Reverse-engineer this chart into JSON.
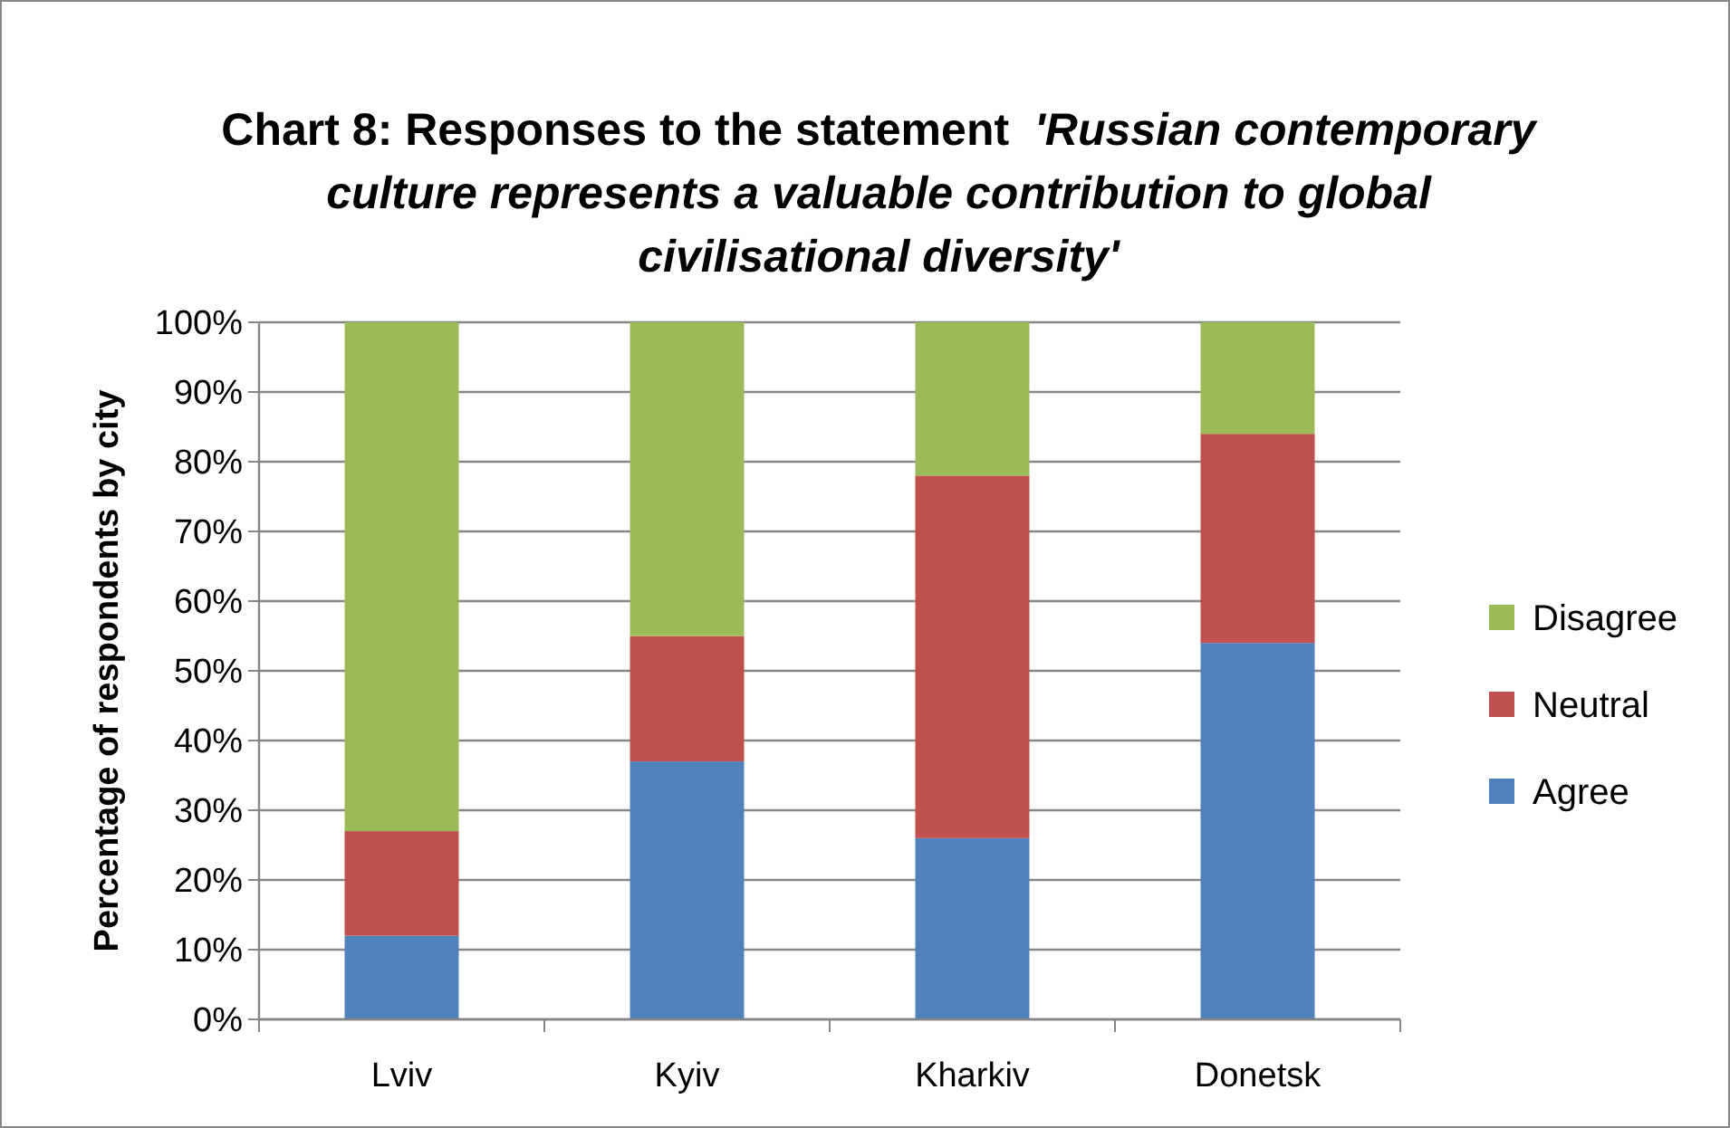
{
  "chart_data": {
    "type": "bar",
    "stacked": true,
    "title": "Chart 8: Responses to the statement  'Russian contemporary culture represents a valuable contribution to global civilisational diversity'",
    "ylabel": "Percentage of respondents by city",
    "categories": [
      "Lviv",
      "Kyiv",
      "Kharkiv",
      "Donetsk"
    ],
    "series": [
      {
        "name": "Agree",
        "color": "#4f81bd",
        "values": [
          12,
          37,
          26,
          54
        ]
      },
      {
        "name": "Neutral",
        "color": "#c0504d",
        "values": [
          15,
          18,
          52,
          30
        ]
      },
      {
        "name": "Disagree",
        "color": "#9bbb59",
        "values": [
          73,
          45,
          22,
          16
        ]
      }
    ],
    "ylim": [
      0,
      100
    ],
    "yticks": [
      {
        "value": 0,
        "label": "0%"
      },
      {
        "value": 10,
        "label": "10%"
      },
      {
        "value": 20,
        "label": "20%"
      },
      {
        "value": 30,
        "label": "30%"
      },
      {
        "value": 40,
        "label": "40%"
      },
      {
        "value": 50,
        "label": "50%"
      },
      {
        "value": 60,
        "label": "60%"
      },
      {
        "value": 70,
        "label": "70%"
      },
      {
        "value": 80,
        "label": "80%"
      },
      {
        "value": 90,
        "label": "90%"
      },
      {
        "value": 100,
        "label": "100%"
      }
    ],
    "grid": "y",
    "legend": "right"
  }
}
